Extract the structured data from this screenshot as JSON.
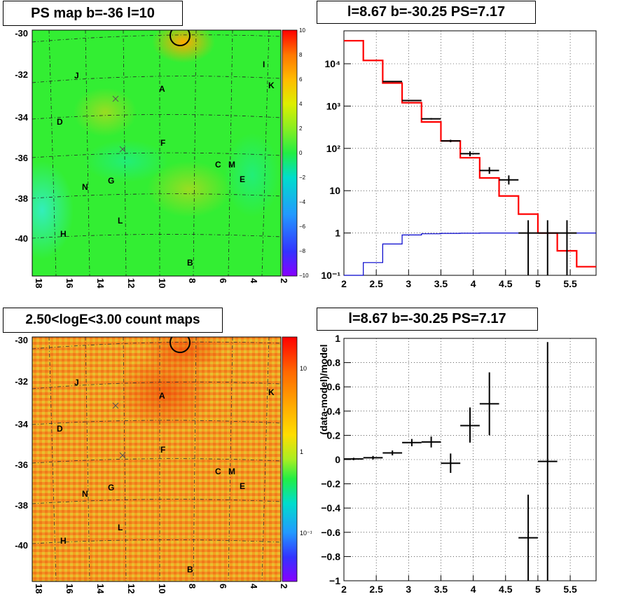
{
  "titles": {
    "map_top": "PS map b=-36 l=10",
    "spectrum_top": "l=8.67 b=-30.25 PS=7.17",
    "map_bottom": "2.50<logE<3.00 count maps",
    "residual_bottom": "l=8.67 b=-30.25 PS=7.17"
  },
  "map_axes": {
    "y_ticks": [
      "-30",
      "-32",
      "-34",
      "-36",
      "-38",
      "-40"
    ],
    "x_ticks": [
      "18",
      "16",
      "14",
      "12",
      "10",
      "8",
      "6",
      "4",
      "2"
    ]
  },
  "source_labels": [
    {
      "text": "J"
    },
    {
      "text": "I"
    },
    {
      "text": "K"
    },
    {
      "text": "A"
    },
    {
      "text": "D"
    },
    {
      "text": "F"
    },
    {
      "text": "C"
    },
    {
      "text": "M"
    },
    {
      "text": "E"
    },
    {
      "text": "N"
    },
    {
      "text": "G"
    },
    {
      "text": "L"
    },
    {
      "text": "H"
    },
    {
      "text": "B"
    }
  ],
  "colorbar_top": {
    "ticks": [
      "10",
      "8",
      "6",
      "4",
      "2",
      "0",
      "−2",
      "−4",
      "−6",
      "−8",
      "−10"
    ]
  },
  "colorbar_bottom": {
    "ticks": [
      "10",
      "1",
      "10⁻¹"
    ]
  },
  "chart_data": [
    {
      "type": "line",
      "panel": "spectrum",
      "title": "l=8.67 b=-30.25 PS=7.17",
      "xlim": [
        2,
        5.9
      ],
      "ylim": [
        0.1,
        60000
      ],
      "yscale": "log",
      "x_ticks": [
        "2",
        "2.5",
        "3",
        "3.5",
        "4",
        "4.5",
        "5",
        "5.5"
      ],
      "y_ticks": [
        "10⁻¹",
        "1",
        "10",
        "10²",
        "10³",
        "10⁴"
      ],
      "grid": true,
      "series": [
        {
          "color": "#ff0000",
          "style": "step",
          "edges": [
            2,
            2.3,
            2.6,
            2.9,
            3.2,
            3.5,
            3.8,
            4.1,
            4.4,
            4.7,
            5.0,
            5.3,
            5.6,
            5.9
          ],
          "values": [
            35000,
            12000,
            3500,
            1200,
            420,
            150,
            60,
            20,
            7.5,
            2.8,
            1.0,
            0.38,
            0.16
          ]
        },
        {
          "color": "#0000cc",
          "style": "step",
          "edges": [
            2,
            2.3,
            2.6,
            2.9,
            3.2,
            3.5,
            3.8,
            4.1,
            4.4,
            4.7,
            5.0,
            5.3,
            5.6,
            5.9
          ],
          "values": [
            0.1,
            0.2,
            0.55,
            0.9,
            0.96,
            0.98,
            0.99,
            1.0,
            1.0,
            1.0,
            1.0,
            1.0,
            1.0
          ]
        },
        {
          "color": "#000000",
          "style": "points",
          "points": [
            {
              "x": 2.75,
              "y": 3800,
              "xerr": 0.15,
              "ylo": 3700,
              "yhi": 3900
            },
            {
              "x": 3.05,
              "y": 1350,
              "xerr": 0.15,
              "ylo": 1300,
              "yhi": 1400
            },
            {
              "x": 3.35,
              "y": 500,
              "xerr": 0.15,
              "ylo": 480,
              "yhi": 520
            },
            {
              "x": 3.65,
              "y": 150,
              "xerr": 0.15,
              "ylo": 140,
              "yhi": 160
            },
            {
              "x": 3.95,
              "y": 75,
              "xerr": 0.15,
              "ylo": 65,
              "yhi": 85
            },
            {
              "x": 4.25,
              "y": 30,
              "xerr": 0.15,
              "ylo": 25,
              "yhi": 36
            },
            {
              "x": 4.55,
              "y": 18,
              "xerr": 0.15,
              "ylo": 14,
              "yhi": 23
            },
            {
              "x": 4.85,
              "y": 1.0,
              "xerr": 0.15,
              "ylo": 0.1,
              "yhi": 2.0
            },
            {
              "x": 5.15,
              "y": 1.0,
              "xerr": 0.15,
              "ylo": 0.1,
              "yhi": 2.0
            },
            {
              "x": 5.45,
              "y": 1.0,
              "xerr": 0.15,
              "ylo": 0.1,
              "yhi": 2.0
            }
          ]
        }
      ]
    },
    {
      "type": "scatter",
      "panel": "residual",
      "title": "l=8.67 b=-30.25 PS=7.17",
      "ylabel": "(data-model)/model",
      "xlim": [
        2,
        5.9
      ],
      "ylim": [
        -1,
        1
      ],
      "x_ticks": [
        "2",
        "2.5",
        "3",
        "3.5",
        "4",
        "4.5",
        "5",
        "5.5"
      ],
      "y_ticks": [
        "1",
        "0.8",
        "0.6",
        "0.4",
        "0.2",
        "0",
        "−0.2",
        "−0.4",
        "−0.6",
        "−0.8",
        "−1"
      ],
      "grid": true,
      "series": [
        {
          "color": "#000000",
          "points": [
            {
              "x": 2.15,
              "y": 0.005,
              "xerr": 0.15,
              "ylo": -0.005,
              "yhi": 0.015
            },
            {
              "x": 2.45,
              "y": 0.015,
              "xerr": 0.15,
              "ylo": 0.0,
              "yhi": 0.03
            },
            {
              "x": 2.75,
              "y": 0.055,
              "xerr": 0.15,
              "ylo": 0.035,
              "yhi": 0.075
            },
            {
              "x": 3.05,
              "y": 0.14,
              "xerr": 0.15,
              "ylo": 0.11,
              "yhi": 0.17
            },
            {
              "x": 3.35,
              "y": 0.145,
              "xerr": 0.15,
              "ylo": 0.1,
              "yhi": 0.19
            },
            {
              "x": 3.65,
              "y": -0.03,
              "xerr": 0.15,
              "ylo": -0.11,
              "yhi": 0.05
            },
            {
              "x": 3.95,
              "y": 0.28,
              "xerr": 0.15,
              "ylo": 0.14,
              "yhi": 0.43
            },
            {
              "x": 4.25,
              "y": 0.46,
              "xerr": 0.15,
              "ylo": 0.2,
              "yhi": 0.72
            },
            {
              "x": 4.85,
              "y": -0.645,
              "xerr": 0.15,
              "ylo": -1.0,
              "yhi": -0.29
            },
            {
              "x": 5.15,
              "y": -0.015,
              "xerr": 0.15,
              "ylo": -1.0,
              "yhi": 0.97
            }
          ]
        }
      ]
    }
  ]
}
